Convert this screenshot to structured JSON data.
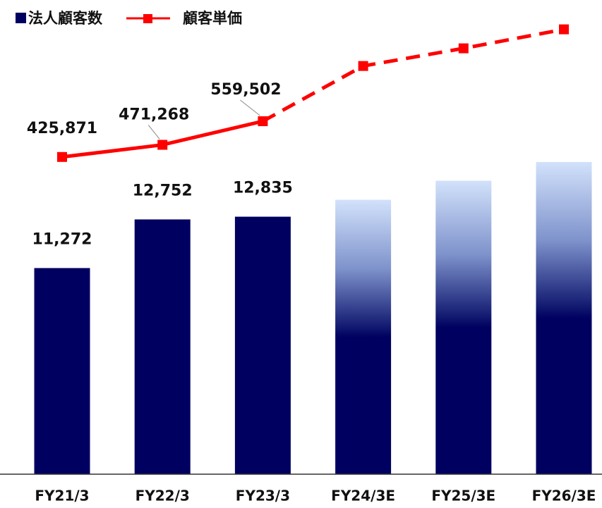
{
  "chart_data": {
    "type": "bar_line",
    "categories": [
      "FY21/3",
      "FY22/3",
      "FY23/3",
      "FY24/3E",
      "FY25/3E",
      "FY26/3E"
    ],
    "estimated": [
      false,
      false,
      false,
      true,
      true,
      true
    ],
    "series": [
      {
        "name": "法人顧客数",
        "type": "bar",
        "color": "#000060",
        "values": [
          11272,
          12752,
          12835,
          13350,
          13930,
          14500
        ],
        "value_labels": [
          "11,272",
          "12,752",
          "12,835",
          null,
          null,
          null
        ]
      },
      {
        "name": "顧客単価",
        "type": "line",
        "axis": "y2",
        "color": "#ff0000",
        "values": [
          425871,
          471268,
          559502,
          766000,
          832000,
          903000
        ],
        "value_labels": [
          "425,871",
          "471,268",
          "559,502",
          null,
          null,
          null
        ]
      }
    ],
    "ylim": [
      5000,
      19000
    ],
    "y2lim": [
      -760000,
      960000
    ],
    "legend": "top-left"
  }
}
